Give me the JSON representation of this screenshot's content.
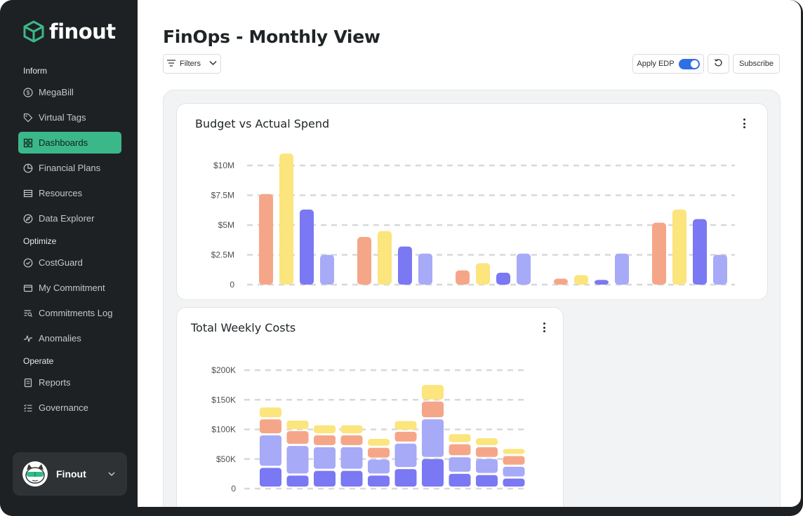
{
  "app": {
    "name": "finout"
  },
  "sidebar": {
    "sections": [
      {
        "label": "Inform",
        "items": [
          {
            "label": "MegaBill",
            "icon": "dollar-circle-icon"
          },
          {
            "label": "Virtual Tags",
            "icon": "tag-icon"
          },
          {
            "label": "Dashboards",
            "icon": "grid-icon",
            "active": true
          },
          {
            "label": "Financial Plans",
            "icon": "pie-icon"
          },
          {
            "label": "Resources",
            "icon": "list-icon"
          },
          {
            "label": "Data Explorer",
            "icon": "compass-icon"
          }
        ]
      },
      {
        "label": "Optimize",
        "items": [
          {
            "label": "CostGuard",
            "icon": "shield-check-icon"
          },
          {
            "label": "My Commitment",
            "icon": "wallet-icon"
          },
          {
            "label": "Commitments Log",
            "icon": "log-search-icon"
          },
          {
            "label": "Anomalies",
            "icon": "pulse-icon"
          }
        ]
      },
      {
        "label": "Operate",
        "items": [
          {
            "label": "Reports",
            "icon": "document-icon"
          },
          {
            "label": "Governance",
            "icon": "checklist-icon"
          }
        ]
      }
    ],
    "user": {
      "name": "Finout"
    }
  },
  "header": {
    "title": "FinOps - Monthly View",
    "filters_label": "Filters",
    "apply_edp_label": "Apply EDP",
    "apply_edp_on": true,
    "subscribe_label": "Subscribe"
  },
  "colors": {
    "salmon": "#f6a688",
    "yellow": "#fbe57c",
    "violet": "#7b78f3",
    "lavender": "#a6aaf7",
    "accent": "#3bb88a"
  },
  "chart_data": [
    {
      "type": "bar",
      "title": "Budget vs Actual Spend",
      "yticks": [
        "$10M",
        "$7.5M",
        "$5M",
        "$2.5M",
        "0"
      ],
      "ylim": [
        0,
        10.8
      ],
      "unit": "M",
      "groups": 5,
      "series": [
        {
          "color": "salmon",
          "values": [
            7.6,
            4.0,
            1.2,
            0.5,
            5.2
          ]
        },
        {
          "color": "yellow",
          "values": [
            11.0,
            4.5,
            1.8,
            0.8,
            6.3
          ]
        },
        {
          "color": "violet",
          "values": [
            6.3,
            3.2,
            1.0,
            0.4,
            5.5
          ]
        },
        {
          "color": "lavender",
          "values": [
            2.5,
            2.6,
            2.6,
            2.6,
            2.5
          ]
        }
      ],
      "grid": true
    },
    {
      "type": "bar",
      "stacked": true,
      "title": "Total Weekly Costs",
      "yticks": [
        "$200K",
        "$150K",
        "$100K",
        "$50K",
        "0"
      ],
      "ylim": [
        0,
        200
      ],
      "unit": "K",
      "categories": 10,
      "series": [
        {
          "color": "violet",
          "values": [
            35,
            22,
            30,
            30,
            22,
            33,
            50,
            25,
            23,
            17
          ]
        },
        {
          "color": "lavender",
          "values": [
            55,
            50,
            40,
            40,
            27,
            43,
            67,
            28,
            27,
            20
          ]
        },
        {
          "color": "salmon",
          "values": [
            27,
            25,
            20,
            20,
            20,
            20,
            30,
            22,
            20,
            18
          ]
        },
        {
          "color": "yellow",
          "values": [
            20,
            18,
            17,
            17,
            15,
            18,
            28,
            17,
            15,
            12
          ]
        }
      ],
      "grid": true
    }
  ]
}
